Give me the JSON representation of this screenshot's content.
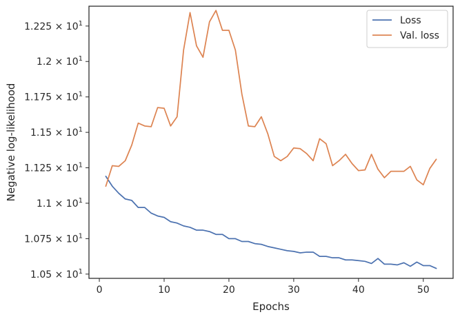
{
  "chart_data": {
    "type": "line",
    "title": "",
    "xlabel": "Epochs",
    "ylabel": "Negative log-likelihood",
    "xlim": [
      -1.6,
      54.6
    ],
    "ylim": [
      10.47,
      12.39
    ],
    "x_ticks": [
      0,
      10,
      20,
      30,
      40,
      50
    ],
    "x_tick_labels": [
      "0",
      "10",
      "20",
      "30",
      "40",
      "50"
    ],
    "y_ticks": [
      10.5,
      10.75,
      11.0,
      11.25,
      11.5,
      11.75,
      12.0,
      12.25
    ],
    "y_tick_mantissas": [
      "1.05",
      "1.075",
      "1.1",
      "1.125",
      "1.15",
      "1.175",
      "1.2",
      "1.225"
    ],
    "y_tick_multiplier": "× 10",
    "y_tick_exponent": "1",
    "grid": false,
    "legend_position": "top-right",
    "x": [
      1,
      2,
      3,
      4,
      5,
      6,
      7,
      8,
      9,
      10,
      11,
      12,
      13,
      14,
      15,
      16,
      17,
      18,
      19,
      20,
      21,
      22,
      23,
      24,
      25,
      26,
      27,
      28,
      29,
      30,
      31,
      32,
      33,
      34,
      35,
      36,
      37,
      38,
      39,
      40,
      41,
      42,
      43,
      44,
      45,
      46,
      47,
      48,
      49,
      50,
      51,
      52
    ],
    "series": [
      {
        "name": "Loss",
        "color": "#4c72b0",
        "values": [
          11.19,
          11.12,
          11.07,
          11.03,
          11.02,
          10.97,
          10.97,
          10.93,
          10.91,
          10.9,
          10.87,
          10.86,
          10.84,
          10.83,
          10.81,
          10.81,
          10.8,
          10.78,
          10.78,
          10.75,
          10.75,
          10.73,
          10.73,
          10.715,
          10.71,
          10.695,
          10.685,
          10.675,
          10.665,
          10.66,
          10.65,
          10.655,
          10.655,
          10.625,
          10.625,
          10.615,
          10.615,
          10.6,
          10.6,
          10.595,
          10.59,
          10.575,
          10.61,
          10.57,
          10.57,
          10.565,
          10.58,
          10.555,
          10.585,
          10.56,
          10.56,
          10.54
        ]
      },
      {
        "name": "Val. loss",
        "color": "#dd8452",
        "values": [
          11.12,
          11.265,
          11.26,
          11.3,
          11.41,
          11.565,
          11.545,
          11.54,
          11.675,
          11.67,
          11.545,
          11.61,
          12.08,
          12.345,
          12.11,
          12.03,
          12.28,
          12.36,
          12.22,
          12.22,
          12.08,
          11.77,
          11.545,
          11.54,
          11.61,
          11.49,
          11.33,
          11.3,
          11.33,
          11.39,
          11.385,
          11.35,
          11.3,
          11.455,
          11.42,
          11.265,
          11.3,
          11.345,
          11.28,
          11.23,
          11.235,
          11.345,
          11.24,
          11.18,
          11.225,
          11.225,
          11.225,
          11.26,
          11.165,
          11.13,
          11.245,
          11.31
        ]
      }
    ]
  }
}
